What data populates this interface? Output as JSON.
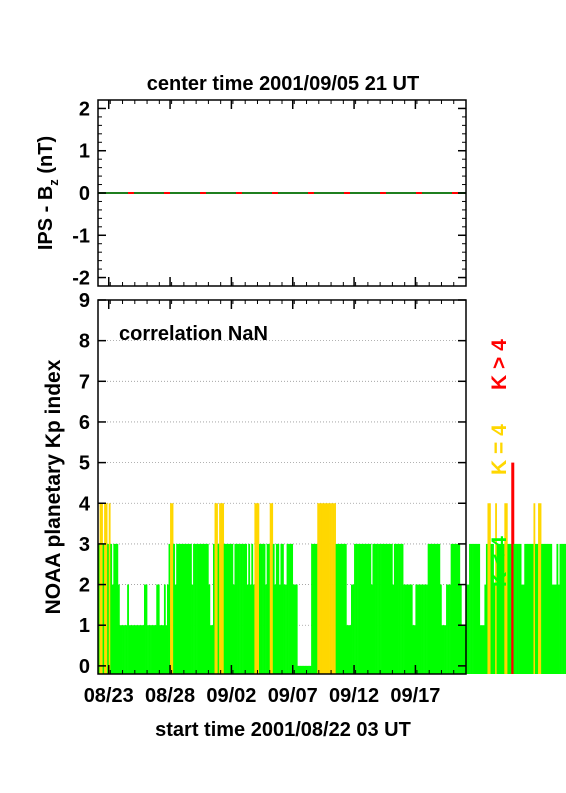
{
  "header": {
    "title": "center time 2001/09/05 21 UT"
  },
  "footer": {
    "xlabel": "start time 2001/08/22 03 UT"
  },
  "chart_data": [
    {
      "type": "line",
      "ylabel": "IPS - B",
      "ylabel_sub": "z",
      "ylabel_unit": " (nT)",
      "ylim": [
        -2.2,
        2.2
      ],
      "yticks": [
        "2",
        "1",
        "0",
        "-1",
        "-2"
      ],
      "ytick_values": [
        2,
        1,
        0,
        -1,
        -2
      ],
      "xlim": [
        0,
        30
      ],
      "series": [
        {
          "color": "#1f7f1f",
          "style": "dashed",
          "x": [
            0,
            30
          ],
          "y": [
            0,
            0
          ]
        },
        {
          "color": "#ff0000",
          "style": "dashed",
          "x": [
            0,
            30
          ],
          "y": [
            0,
            0
          ]
        }
      ]
    },
    {
      "type": "bar",
      "annotation": "correlation NaN",
      "ylabel": "NOAA planetary Kp index",
      "ylim": [
        -0.2,
        9
      ],
      "yticks": [
        "9",
        "8",
        "7",
        "6",
        "5",
        "4",
        "3",
        "2",
        "1",
        "0"
      ],
      "ytick_values": [
        9,
        8,
        7,
        6,
        5,
        4,
        3,
        2,
        1,
        0
      ],
      "grid": true,
      "xlim": [
        0,
        30
      ],
      "xticks": [
        "08/23",
        "08/28",
        "09/02",
        "09/07",
        "09/12",
        "09/17"
      ],
      "xtick_values": [
        0.875,
        5.875,
        10.875,
        15.875,
        20.875,
        25.875
      ],
      "bar_width_days": 0.125,
      "start_day_offset": 0,
      "values": [
        3,
        4,
        4,
        3,
        4,
        4,
        3,
        4,
        3,
        2,
        3,
        3,
        3,
        2,
        1,
        1,
        1,
        1,
        1,
        2,
        1,
        1,
        1,
        1,
        1,
        1,
        1,
        1,
        1,
        1,
        2,
        2,
        1,
        1,
        1,
        1,
        1,
        1,
        2,
        2,
        1,
        1,
        1,
        2,
        1,
        2,
        3,
        4,
        4,
        3,
        2,
        3,
        3,
        3,
        3,
        3,
        3,
        3,
        3,
        3,
        3,
        2,
        3,
        3,
        3,
        3,
        3,
        3,
        3,
        3,
        3,
        3,
        2,
        1,
        1,
        3,
        4,
        4,
        3,
        4,
        4,
        4,
        3,
        3,
        3,
        3,
        3,
        3,
        2,
        3,
        3,
        3,
        3,
        3,
        3,
        3,
        3,
        2,
        3,
        2,
        3,
        2,
        4,
        4,
        4,
        3,
        3,
        3,
        3,
        2,
        3,
        3,
        4,
        4,
        3,
        2,
        3,
        3,
        2,
        3,
        3,
        2,
        2,
        3,
        3,
        3,
        3,
        2,
        2,
        2,
        0,
        0,
        0,
        0,
        0,
        0,
        0,
        0,
        0,
        3,
        3,
        3,
        3,
        4,
        4,
        4,
        4,
        4,
        4,
        4,
        4,
        4,
        4,
        4,
        4,
        3,
        3,
        3,
        3,
        3,
        3,
        3,
        1,
        1,
        1,
        2,
        2,
        3,
        3,
        3,
        3,
        3,
        3,
        3,
        3,
        3,
        3,
        3,
        2,
        3,
        3,
        3,
        3,
        3,
        3,
        3,
        3,
        3,
        3,
        3,
        3,
        3,
        2,
        3,
        3,
        3,
        3,
        3,
        3,
        2,
        2,
        2,
        2,
        2,
        2,
        1,
        1,
        2,
        2,
        2,
        2,
        2,
        2,
        2,
        2,
        3,
        3,
        3,
        3,
        3,
        3,
        3,
        3,
        2,
        1,
        1,
        1,
        2,
        2,
        2,
        3,
        3,
        3,
        3,
        3,
        3,
        2,
        1,
        1,
        1,
        2,
        2,
        3,
        3,
        3,
        3,
        3,
        3,
        3,
        1,
        1,
        1,
        2,
        3,
        4,
        4,
        3,
        3,
        2,
        4,
        3,
        3,
        3,
        3,
        3,
        4,
        4,
        3,
        3,
        3,
        5,
        3,
        3,
        3,
        3,
        3,
        2,
        2,
        3,
        3,
        3,
        3,
        3,
        3,
        4,
        3,
        3,
        4,
        4,
        3,
        3,
        3,
        3,
        3,
        3,
        3,
        2,
        2,
        2,
        3,
        2,
        3,
        3,
        3,
        3,
        3,
        3,
        3,
        3,
        3,
        3,
        3,
        3,
        3,
        2,
        3,
        3,
        3,
        3,
        3,
        3,
        3,
        3,
        3,
        3,
        2,
        3,
        3,
        3,
        3,
        3,
        3,
        3,
        3,
        4,
        3,
        2,
        3,
        3,
        3,
        3,
        3,
        3,
        3,
        3,
        2,
        2,
        1,
        1,
        1,
        2,
        1
      ],
      "legend": [
        {
          "label": "K < 4",
          "color": "#00ff00"
        },
        {
          "label": "K = 4",
          "color": "#ffd700"
        },
        {
          "label": "K > 4",
          "color": "#ff0000"
        }
      ]
    }
  ]
}
